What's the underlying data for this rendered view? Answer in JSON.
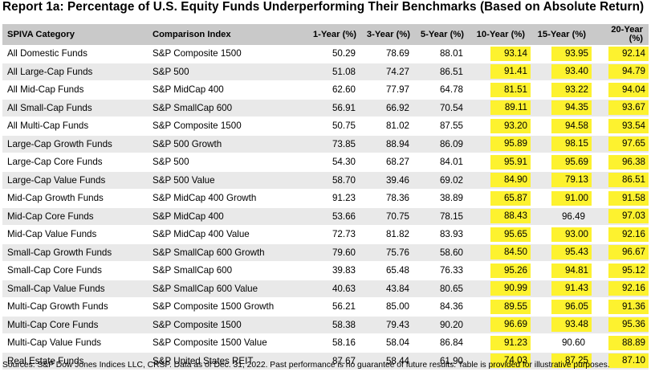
{
  "title": "Report 1a: Percentage of U.S. Equity Funds Underperforming Their Benchmarks (Based on Absolute Return)",
  "headers": {
    "category": "SPIVA Category",
    "index": "Comparison Index",
    "y1": "1-Year (%)",
    "y3": "3-Year (%)",
    "y5": "5-Year (%)",
    "y10": "10-Year (%)",
    "y15": "15-Year (%)",
    "y20": "20-Year (%)"
  },
  "highlight_color": "#fdf22f",
  "rows": [
    {
      "category": "All Domestic Funds",
      "index": "S&P Composite 1500",
      "y1": "50.29",
      "y3": "78.69",
      "y5": "88.01",
      "y10": "93.14",
      "y15": "93.95",
      "y20": "92.14"
    },
    {
      "category": "All Large-Cap Funds",
      "index": "S&P 500",
      "y1": "51.08",
      "y3": "74.27",
      "y5": "86.51",
      "y10": "91.41",
      "y15": "93.40",
      "y20": "94.79"
    },
    {
      "category": "All Mid-Cap Funds",
      "index": "S&P MidCap 400",
      "y1": "62.60",
      "y3": "77.97",
      "y5": "64.78",
      "y10": "81.51",
      "y15": "93.22",
      "y20": "94.04"
    },
    {
      "category": "All Small-Cap Funds",
      "index": "S&P SmallCap 600",
      "y1": "56.91",
      "y3": "66.92",
      "y5": "70.54",
      "y10": "89.11",
      "y15": "94.35",
      "y20": "93.67"
    },
    {
      "category": "All Multi-Cap Funds",
      "index": "S&P Composite 1500",
      "y1": "50.75",
      "y3": "81.02",
      "y5": "87.55",
      "y10": "93.20",
      "y15": "94.58",
      "y20": "93.54"
    },
    {
      "category": "Large-Cap Growth Funds",
      "index": "S&P 500 Growth",
      "y1": "73.85",
      "y3": "88.94",
      "y5": "86.09",
      "y10": "95.89",
      "y15": "98.15",
      "y20": "97.65"
    },
    {
      "category": "Large-Cap Core Funds",
      "index": "S&P 500",
      "y1": "54.30",
      "y3": "68.27",
      "y5": "84.01",
      "y10": "95.91",
      "y15": "95.69",
      "y20": "96.38"
    },
    {
      "category": "Large-Cap Value Funds",
      "index": "S&P 500 Value",
      "y1": "58.70",
      "y3": "39.46",
      "y5": "69.02",
      "y10": "84.90",
      "y15": "79.13",
      "y20": "86.51"
    },
    {
      "category": "Mid-Cap Growth Funds",
      "index": "S&P MidCap 400 Growth",
      "y1": "91.23",
      "y3": "78.36",
      "y5": "38.89",
      "y10": "65.87",
      "y15": "91.00",
      "y20": "91.58"
    },
    {
      "category": "Mid-Cap Core Funds",
      "index": "S&P MidCap 400",
      "y1": "53.66",
      "y3": "70.75",
      "y5": "78.15",
      "y10": "88.43",
      "y15": "96.49",
      "y20": "97.03"
    },
    {
      "category": "Mid-Cap Value Funds",
      "index": "S&P MidCap 400 Value",
      "y1": "72.73",
      "y3": "81.82",
      "y5": "83.93",
      "y10": "95.65",
      "y15": "93.00",
      "y20": "92.16"
    },
    {
      "category": "Small-Cap Growth Funds",
      "index": "S&P SmallCap 600 Growth",
      "y1": "79.60",
      "y3": "75.76",
      "y5": "58.60",
      "y10": "84.50",
      "y15": "95.43",
      "y20": "96.67"
    },
    {
      "category": "Small-Cap Core Funds",
      "index": "S&P SmallCap 600",
      "y1": "39.83",
      "y3": "65.48",
      "y5": "76.33",
      "y10": "95.26",
      "y15": "94.81",
      "y20": "95.12"
    },
    {
      "category": "Small-Cap Value Funds",
      "index": "S&P SmallCap 600 Value",
      "y1": "40.63",
      "y3": "43.84",
      "y5": "80.65",
      "y10": "90.99",
      "y15": "91.43",
      "y20": "92.16"
    },
    {
      "category": "Multi-Cap Growth Funds",
      "index": "S&P Composite 1500 Growth",
      "y1": "56.21",
      "y3": "85.00",
      "y5": "84.36",
      "y10": "89.55",
      "y15": "96.05",
      "y20": "91.36"
    },
    {
      "category": "Multi-Cap Core Funds",
      "index": "S&P Composite 1500",
      "y1": "58.38",
      "y3": "79.43",
      "y5": "90.20",
      "y10": "96.69",
      "y15": "93.48",
      "y20": "95.36"
    },
    {
      "category": "Multi-Cap Value Funds",
      "index": "S&P Composite 1500 Value",
      "y1": "58.16",
      "y3": "58.04",
      "y5": "86.84",
      "y10": "91.23",
      "y15": "90.60",
      "y20": "88.89"
    },
    {
      "category": "Real Estate Funds",
      "index": "S&P United States REIT",
      "y1": "87.67",
      "y3": "58.44",
      "y5": "61.90",
      "y10": "74.03",
      "y15": "87.25",
      "y20": "87.10"
    }
  ],
  "highlighted": [
    [
      true,
      true,
      true
    ],
    [
      true,
      true,
      true
    ],
    [
      true,
      true,
      true
    ],
    [
      true,
      true,
      true
    ],
    [
      true,
      true,
      true
    ],
    [
      true,
      true,
      true
    ],
    [
      true,
      true,
      true
    ],
    [
      true,
      true,
      true
    ],
    [
      true,
      true,
      true
    ],
    [
      true,
      false,
      true
    ],
    [
      true,
      true,
      true
    ],
    [
      true,
      true,
      true
    ],
    [
      true,
      true,
      true
    ],
    [
      true,
      true,
      true
    ],
    [
      true,
      true,
      true
    ],
    [
      true,
      true,
      true
    ],
    [
      true,
      false,
      true
    ],
    [
      true,
      true,
      true
    ]
  ],
  "footer": "Sources: S&P Dow Jones Indices LLC, CRSP. Data as of Dec. 31, 2022. Past performance is no guarantee of future results. Table is provided for illustrative purposes."
}
